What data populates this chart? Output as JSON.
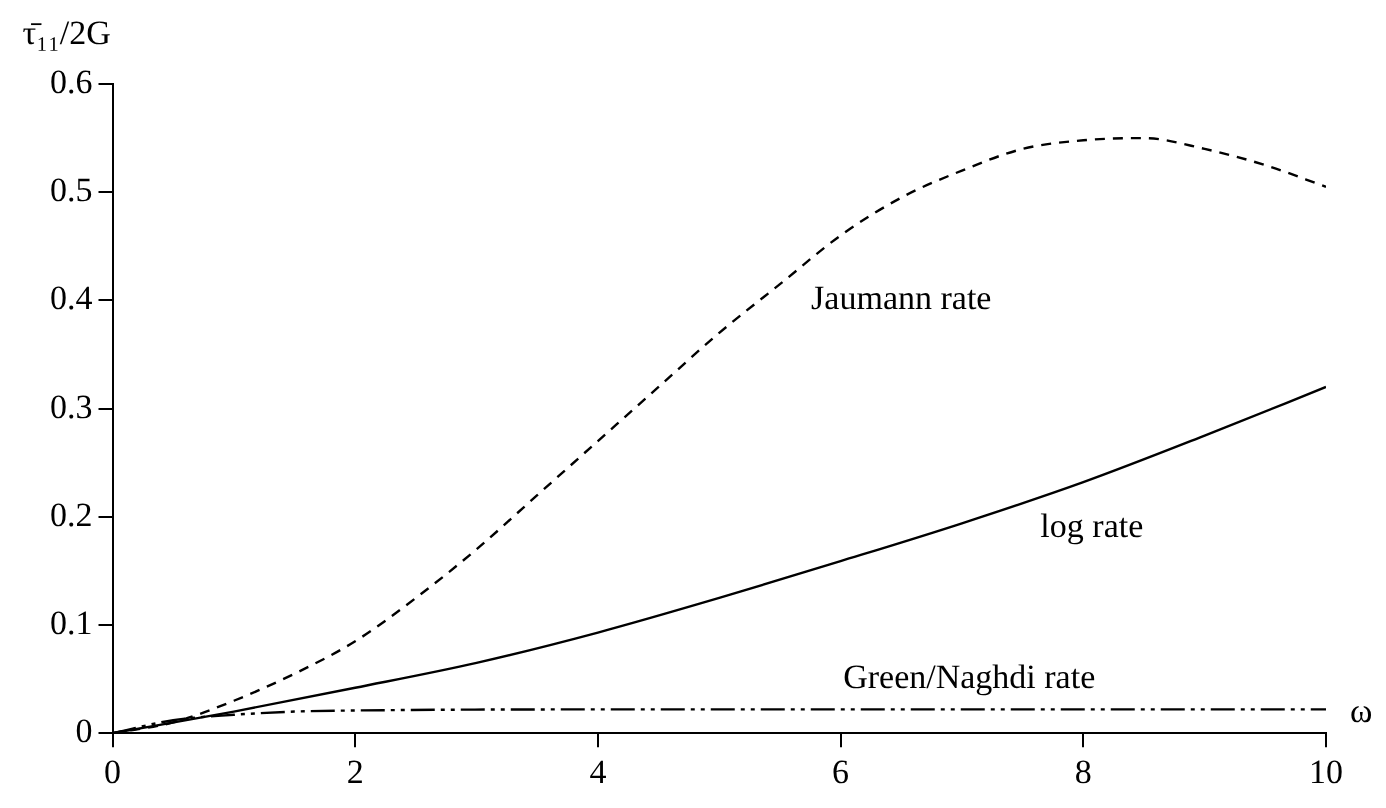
{
  "chart_data": {
    "type": "line",
    "ylabel": "τ̄₁₁/2G",
    "xlabel": "ω",
    "xlim": [
      0,
      10
    ],
    "xticks": [
      0,
      2,
      4,
      6,
      8,
      10
    ],
    "ylim": [
      0,
      0.6
    ],
    "yticks": [
      0,
      0.1,
      0.2,
      0.3,
      0.4,
      0.5,
      0.6
    ],
    "grid": false,
    "legend": false,
    "marker": "none",
    "series": [
      {
        "name": "Jaumann rate",
        "color": "#000000",
        "line_style": "dashed",
        "x": [
          0,
          0.5,
          1,
          1.5,
          2,
          2.5,
          3,
          3.5,
          4,
          4.5,
          5,
          5.5,
          6,
          6.5,
          7,
          7.5,
          8,
          8.5,
          9,
          9.5,
          10
        ],
        "values": [
          0,
          0.01,
          0.03,
          0.055,
          0.085,
          0.125,
          0.17,
          0.22,
          0.27,
          0.32,
          0.37,
          0.415,
          0.46,
          0.495,
          0.52,
          0.54,
          0.548,
          0.55,
          0.54,
          0.525,
          0.505
        ]
      },
      {
        "name": "log rate",
        "color": "#000000",
        "line_style": "solid",
        "x": [
          0,
          1,
          2,
          3,
          4,
          5,
          6,
          7,
          8,
          9,
          10
        ],
        "values": [
          0,
          0.02,
          0.042,
          0.065,
          0.093,
          0.125,
          0.159,
          0.194,
          0.232,
          0.275,
          0.32
        ]
      },
      {
        "name": "Green/Naghdi rate",
        "color": "#000000",
        "line_style": "dotted",
        "x": [
          0,
          0.5,
          1,
          1.5,
          2,
          4,
          6,
          8,
          10
        ],
        "values": [
          0,
          0.012,
          0.017,
          0.02,
          0.021,
          0.022,
          0.022,
          0.022,
          0.022
        ]
      }
    ]
  }
}
